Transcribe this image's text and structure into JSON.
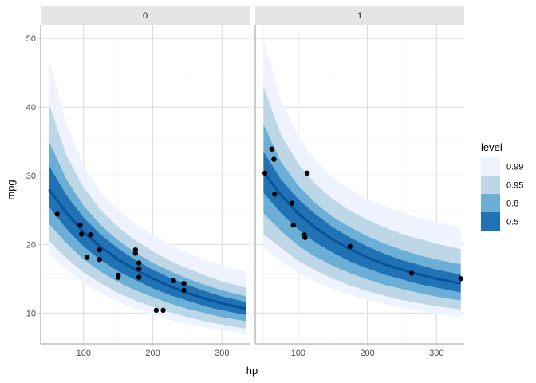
{
  "chart_data": {
    "type": "line",
    "description_kind": "faceted lineribbon with points",
    "xlabel": "hp",
    "ylabel": "mpg",
    "xlim": [
      38,
      340
    ],
    "ylim": [
      5.5,
      52
    ],
    "x_ticks": [
      100,
      200,
      300
    ],
    "y_ticks": [
      10,
      20,
      30,
      40,
      50
    ],
    "grid": true,
    "legend_position": "right",
    "legend": {
      "title": "level",
      "entries": [
        {
          "label": "0.99",
          "color": "#eff3ff"
        },
        {
          "label": "0.95",
          "color": "#bdd7e7"
        },
        {
          "label": "0.8",
          "color": "#6baed6"
        },
        {
          "label": "0.5",
          "color": "#2171b5"
        }
      ]
    },
    "line_color": "#08519c",
    "point_color": "#000000",
    "strip_background": "#e5e5e5",
    "panels": [
      {
        "facet": "0",
        "x_range": [
          50,
          335
        ],
        "median": [
          [
            50,
            28.0
          ],
          [
            75,
            24.6
          ],
          [
            100,
            21.8
          ],
          [
            125,
            19.6
          ],
          [
            150,
            17.8
          ],
          [
            175,
            16.3
          ],
          [
            200,
            15.0
          ],
          [
            225,
            13.9
          ],
          [
            250,
            12.9
          ],
          [
            275,
            12.1
          ],
          [
            300,
            11.4
          ],
          [
            335,
            10.6
          ]
        ],
        "bands": [
          {
            "level": "0.99",
            "lower": [
              [
                50,
                18.5
              ],
              [
                75,
                16.3
              ],
              [
                100,
                14.4
              ],
              [
                125,
                12.9
              ],
              [
                150,
                11.6
              ],
              [
                175,
                10.6
              ],
              [
                200,
                9.7
              ],
              [
                225,
                9.0
              ],
              [
                250,
                8.4
              ],
              [
                275,
                7.9
              ],
              [
                300,
                7.5
              ],
              [
                335,
                6.9
              ]
            ],
            "upper": [
              [
                50,
                47.0
              ],
              [
                75,
                37.5
              ],
              [
                100,
                31.5
              ],
              [
                125,
                27.6
              ],
              [
                150,
                25.0
              ],
              [
                175,
                23.0
              ],
              [
                200,
                21.4
              ],
              [
                225,
                20.0
              ],
              [
                250,
                18.8
              ],
              [
                275,
                17.8
              ],
              [
                300,
                16.9
              ],
              [
                335,
                16.0
              ]
            ]
          },
          {
            "level": "0.95",
            "lower": [
              [
                50,
                20.5
              ],
              [
                75,
                18.0
              ],
              [
                100,
                15.9
              ],
              [
                125,
                14.3
              ],
              [
                150,
                12.9
              ],
              [
                175,
                11.8
              ],
              [
                200,
                10.9
              ],
              [
                225,
                10.1
              ],
              [
                250,
                9.4
              ],
              [
                275,
                8.8
              ],
              [
                300,
                8.3
              ],
              [
                335,
                7.7
              ]
            ],
            "upper": [
              [
                50,
                40.5
              ],
              [
                75,
                33.0
              ],
              [
                100,
                28.3
              ],
              [
                125,
                25.0
              ],
              [
                150,
                22.5
              ],
              [
                175,
                20.6
              ],
              [
                200,
                19.0
              ],
              [
                225,
                17.6
              ],
              [
                250,
                16.5
              ],
              [
                275,
                15.5
              ],
              [
                300,
                14.6
              ],
              [
                335,
                13.7
              ]
            ]
          },
          {
            "level": "0.8",
            "lower": [
              [
                50,
                23.0
              ],
              [
                75,
                20.2
              ],
              [
                100,
                17.8
              ],
              [
                125,
                16.0
              ],
              [
                150,
                14.5
              ],
              [
                175,
                13.3
              ],
              [
                200,
                12.3
              ],
              [
                225,
                11.4
              ],
              [
                250,
                10.6
              ],
              [
                275,
                10.0
              ],
              [
                300,
                9.4
              ],
              [
                335,
                8.8
              ]
            ],
            "upper": [
              [
                50,
                35.0
              ],
              [
                75,
                29.5
              ],
              [
                100,
                25.6
              ],
              [
                125,
                22.8
              ],
              [
                150,
                20.6
              ],
              [
                175,
                18.8
              ],
              [
                200,
                17.3
              ],
              [
                225,
                16.1
              ],
              [
                250,
                15.0
              ],
              [
                275,
                14.1
              ],
              [
                300,
                13.3
              ],
              [
                335,
                12.4
              ]
            ]
          },
          {
            "level": "0.5",
            "lower": [
              [
                50,
                25.5
              ],
              [
                75,
                22.3
              ],
              [
                100,
                19.7
              ],
              [
                125,
                17.7
              ],
              [
                150,
                16.1
              ],
              [
                175,
                14.8
              ],
              [
                200,
                13.6
              ],
              [
                225,
                12.6
              ],
              [
                250,
                11.8
              ],
              [
                275,
                11.0
              ],
              [
                300,
                10.4
              ],
              [
                335,
                9.7
              ]
            ],
            "upper": [
              [
                50,
                31.5
              ],
              [
                75,
                27.2
              ],
              [
                100,
                23.9
              ],
              [
                125,
                21.4
              ],
              [
                150,
                19.4
              ],
              [
                175,
                17.7
              ],
              [
                200,
                16.3
              ],
              [
                225,
                15.1
              ],
              [
                250,
                14.1
              ],
              [
                275,
                13.2
              ],
              [
                300,
                12.4
              ],
              [
                335,
                11.6
              ]
            ]
          }
        ],
        "points": [
          [
            62,
            24.4
          ],
          [
            95,
            22.8
          ],
          [
            97,
            21.5
          ],
          [
            105,
            18.1
          ],
          [
            110,
            21.4
          ],
          [
            123,
            19.2
          ],
          [
            123,
            17.8
          ],
          [
            150,
            15.5
          ],
          [
            150,
            15.2
          ],
          [
            175,
            19.2
          ],
          [
            175,
            18.7
          ],
          [
            180,
            17.3
          ],
          [
            180,
            16.4
          ],
          [
            180,
            15.2
          ],
          [
            205,
            10.4
          ],
          [
            215,
            10.4
          ],
          [
            230,
            14.7
          ],
          [
            245,
            14.3
          ],
          [
            245,
            13.3
          ]
        ]
      },
      {
        "facet": "1",
        "x_range": [
          50,
          335
        ],
        "median": [
          [
            50,
            30.5
          ],
          [
            75,
            27.2
          ],
          [
            100,
            24.5
          ],
          [
            125,
            22.4
          ],
          [
            150,
            20.7
          ],
          [
            175,
            19.3
          ],
          [
            200,
            18.1
          ],
          [
            225,
            17.1
          ],
          [
            250,
            16.3
          ],
          [
            275,
            15.6
          ],
          [
            300,
            15.0
          ],
          [
            335,
            14.3
          ]
        ],
        "bands": [
          {
            "level": "0.99",
            "lower": [
              [
                50,
                19.5
              ],
              [
                75,
                17.5
              ],
              [
                100,
                15.9
              ],
              [
                125,
                14.6
              ],
              [
                150,
                13.5
              ],
              [
                175,
                12.6
              ],
              [
                200,
                11.9
              ],
              [
                225,
                11.3
              ],
              [
                250,
                10.8
              ],
              [
                275,
                10.3
              ],
              [
                300,
                9.9
              ],
              [
                335,
                9.4
              ]
            ],
            "upper": [
              [
                50,
                50.0
              ],
              [
                75,
                41.0
              ],
              [
                100,
                35.8
              ],
              [
                125,
                32.2
              ],
              [
                150,
                29.8
              ],
              [
                175,
                28.0
              ],
              [
                200,
                26.6
              ],
              [
                225,
                25.5
              ],
              [
                250,
                24.6
              ],
              [
                275,
                23.9
              ],
              [
                300,
                23.3
              ],
              [
                335,
                22.5
              ]
            ]
          },
          {
            "level": "0.95",
            "lower": [
              [
                50,
                21.5
              ],
              [
                75,
                19.5
              ],
              [
                100,
                17.6
              ],
              [
                125,
                16.2
              ],
              [
                150,
                15.0
              ],
              [
                175,
                14.0
              ],
              [
                200,
                13.2
              ],
              [
                225,
                12.5
              ],
              [
                250,
                11.9
              ],
              [
                275,
                11.4
              ],
              [
                300,
                11.0
              ],
              [
                335,
                10.5
              ]
            ],
            "upper": [
              [
                50,
                43.0
              ],
              [
                75,
                36.0
              ],
              [
                100,
                31.8
              ],
              [
                125,
                28.8
              ],
              [
                150,
                26.6
              ],
              [
                175,
                24.9
              ],
              [
                200,
                23.6
              ],
              [
                225,
                22.5
              ],
              [
                250,
                21.5
              ],
              [
                275,
                20.8
              ],
              [
                300,
                20.1
              ],
              [
                335,
                19.3
              ]
            ]
          },
          {
            "level": "0.8",
            "lower": [
              [
                50,
                24.5
              ],
              [
                75,
                22.0
              ],
              [
                100,
                19.8
              ],
              [
                125,
                18.2
              ],
              [
                150,
                16.9
              ],
              [
                175,
                15.8
              ],
              [
                200,
                14.9
              ],
              [
                225,
                14.1
              ],
              [
                250,
                13.5
              ],
              [
                275,
                12.9
              ],
              [
                300,
                12.4
              ],
              [
                335,
                11.8
              ]
            ],
            "upper": [
              [
                50,
                37.5
              ],
              [
                75,
                32.0
              ],
              [
                100,
                28.6
              ],
              [
                125,
                26.0
              ],
              [
                150,
                24.0
              ],
              [
                175,
                22.5
              ],
              [
                200,
                21.2
              ],
              [
                225,
                20.1
              ],
              [
                250,
                19.2
              ],
              [
                275,
                18.4
              ],
              [
                300,
                17.8
              ],
              [
                335,
                17.1
              ]
            ]
          },
          {
            "level": "0.5",
            "lower": [
              [
                50,
                27.5
              ],
              [
                75,
                24.6
              ],
              [
                100,
                22.2
              ],
              [
                125,
                20.3
              ],
              [
                150,
                18.8
              ],
              [
                175,
                17.5
              ],
              [
                200,
                16.5
              ],
              [
                225,
                15.6
              ],
              [
                250,
                14.9
              ],
              [
                275,
                14.2
              ],
              [
                300,
                13.7
              ],
              [
                335,
                13.0
              ]
            ],
            "upper": [
              [
                50,
                33.5
              ],
              [
                75,
                29.5
              ],
              [
                100,
                26.6
              ],
              [
                125,
                24.4
              ],
              [
                150,
                22.5
              ],
              [
                175,
                21.0
              ],
              [
                200,
                19.7
              ],
              [
                225,
                18.6
              ],
              [
                250,
                17.7
              ],
              [
                275,
                17.0
              ],
              [
                300,
                16.3
              ],
              [
                335,
                15.6
              ]
            ]
          }
        ],
        "points": [
          [
            52,
            30.4
          ],
          [
            62,
            33.9
          ],
          [
            65,
            32.4
          ],
          [
            66,
            27.3
          ],
          [
            91,
            26.0
          ],
          [
            93,
            22.8
          ],
          [
            109,
            21.4
          ],
          [
            110,
            21.0
          ],
          [
            110,
            21.0
          ],
          [
            113,
            30.4
          ],
          [
            175,
            19.7
          ],
          [
            264,
            15.8
          ],
          [
            335,
            15.0
          ]
        ]
      }
    ]
  }
}
